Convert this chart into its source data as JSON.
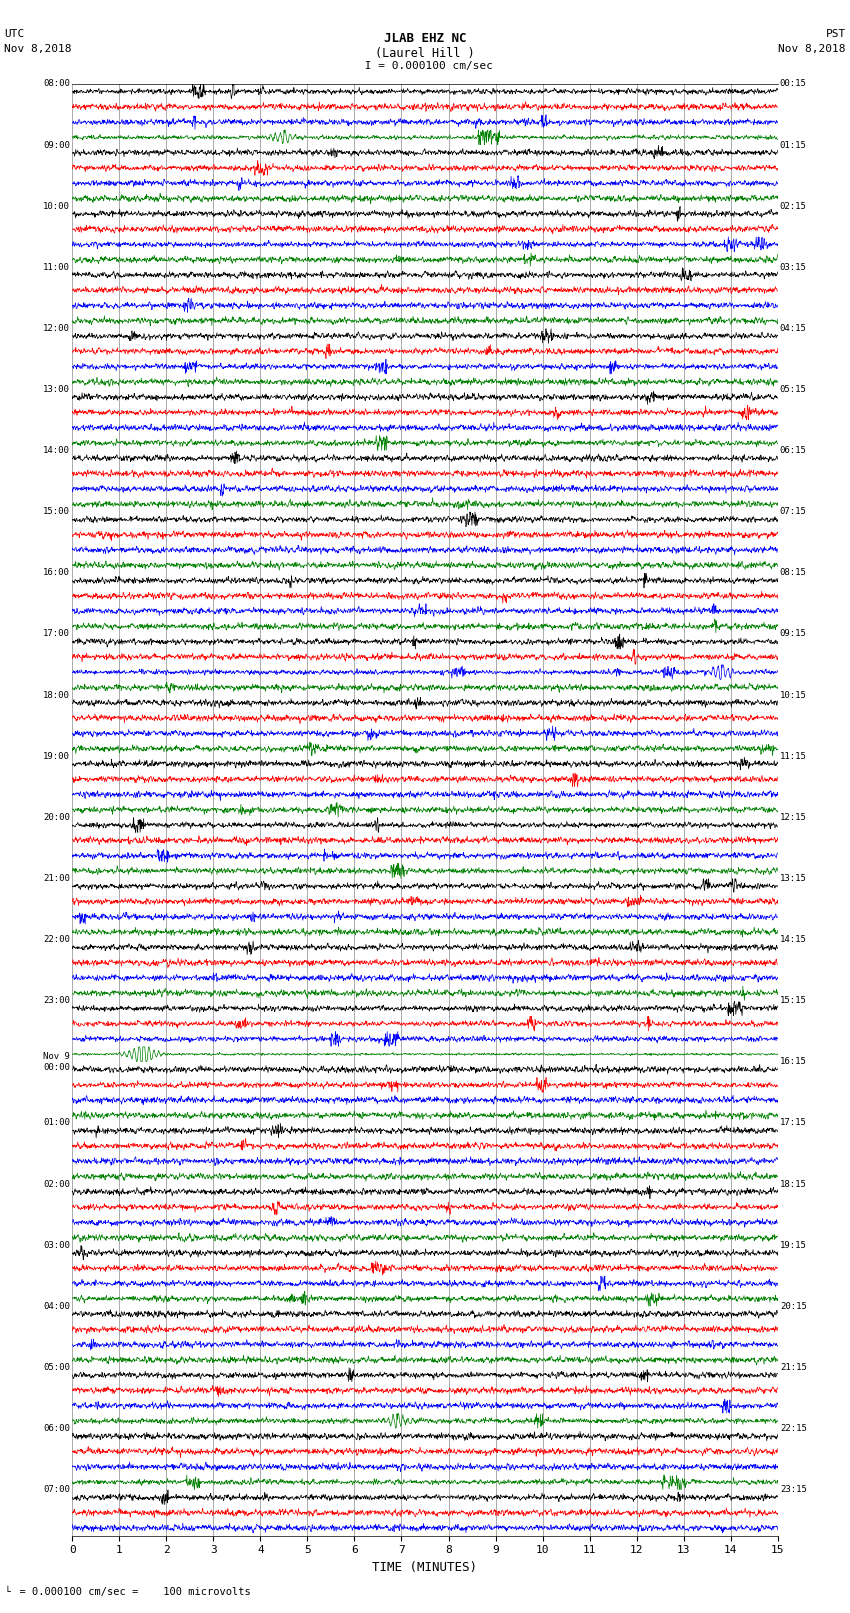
{
  "title_line1": "JLAB EHZ NC",
  "title_line2": "(Laurel Hill )",
  "scale_label": " I = 0.000100 cm/sec",
  "left_date_line1": "UTC",
  "left_date_line2": "Nov 8,2018",
  "right_date_line1": "PST",
  "right_date_line2": "Nov 8,2018",
  "bottom_note": "= 0.000100 cm/sec =    100 microvolts",
  "xlabel": "TIME (MINUTES)",
  "left_times": [
    "08:00",
    "",
    "",
    "",
    "09:00",
    "",
    "",
    "",
    "10:00",
    "",
    "",
    "",
    "11:00",
    "",
    "",
    "",
    "12:00",
    "",
    "",
    "",
    "13:00",
    "",
    "",
    "",
    "14:00",
    "",
    "",
    "",
    "15:00",
    "",
    "",
    "",
    "16:00",
    "",
    "",
    "",
    "17:00",
    "",
    "",
    "",
    "18:00",
    "",
    "",
    "",
    "19:00",
    "",
    "",
    "",
    "20:00",
    "",
    "",
    "",
    "21:00",
    "",
    "",
    "",
    "22:00",
    "",
    "",
    "",
    "23:00",
    "",
    "",
    "",
    "Nov 9\n00:00",
    "",
    "",
    "",
    "01:00",
    "",
    "",
    "",
    "02:00",
    "",
    "",
    "",
    "03:00",
    "",
    "",
    "",
    "04:00",
    "",
    "",
    "",
    "05:00",
    "",
    "",
    "",
    "06:00",
    "",
    "",
    "",
    "07:00",
    "",
    ""
  ],
  "right_times": [
    "00:15",
    "",
    "",
    "",
    "01:15",
    "",
    "",
    "",
    "02:15",
    "",
    "",
    "",
    "03:15",
    "",
    "",
    "",
    "04:15",
    "",
    "",
    "",
    "05:15",
    "",
    "",
    "",
    "06:15",
    "",
    "",
    "",
    "07:15",
    "",
    "",
    "",
    "08:15",
    "",
    "",
    "",
    "09:15",
    "",
    "",
    "",
    "10:15",
    "",
    "",
    "",
    "11:15",
    "",
    "",
    "",
    "12:15",
    "",
    "",
    "",
    "13:15",
    "",
    "",
    "",
    "14:15",
    "",
    "",
    "",
    "15:15",
    "",
    "",
    "",
    "16:15",
    "",
    "",
    "",
    "17:15",
    "",
    "",
    "",
    "18:15",
    "",
    "",
    "",
    "19:15",
    "",
    "",
    "",
    "20:15",
    "",
    "",
    "",
    "21:15",
    "",
    "",
    "",
    "22:15",
    "",
    "",
    "",
    "23:15",
    "",
    ""
  ],
  "colors": [
    "black",
    "red",
    "blue",
    "green"
  ],
  "background_color": "white",
  "total_rows": 95,
  "minutes": 15,
  "x_ticks": [
    0,
    1,
    2,
    3,
    4,
    5,
    6,
    7,
    8,
    9,
    10,
    11,
    12,
    13,
    14,
    15
  ],
  "figsize": [
    8.5,
    16.13
  ],
  "dpi": 100
}
